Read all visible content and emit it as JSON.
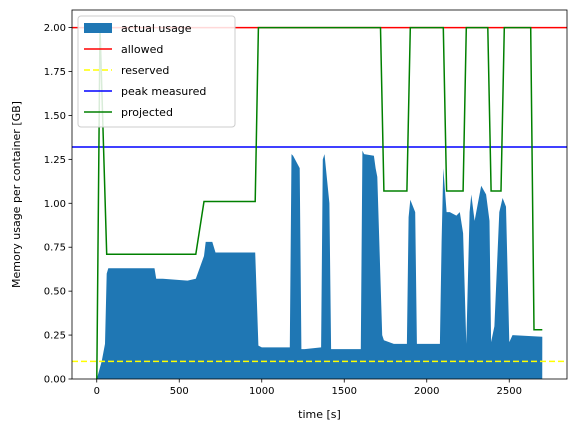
{
  "chart_data": {
    "type": "area",
    "xlabel": "time [s]",
    "ylabel": "Memory usage per container [GB]",
    "xlim": [
      -150,
      2850
    ],
    "ylim": [
      0,
      2.1
    ],
    "xticks": [
      0,
      500,
      1000,
      1500,
      2000,
      2500
    ],
    "yticks": [
      0.0,
      0.25,
      0.5,
      0.75,
      1.0,
      1.25,
      1.5,
      1.75,
      2.0
    ],
    "ytick_labels": [
      "0.00",
      "0.25",
      "0.50",
      "0.75",
      "1.00",
      "1.25",
      "1.50",
      "1.75",
      "2.00"
    ],
    "grid": false,
    "legend_position": "top-left",
    "series": [
      {
        "name": "actual usage",
        "kind": "area",
        "color": "#1f77b4",
        "x": [
          0,
          30,
          50,
          60,
          70,
          350,
          360,
          380,
          400,
          550,
          600,
          650,
          660,
          700,
          720,
          750,
          760,
          900,
          960,
          980,
          1000,
          1170,
          1180,
          1190,
          1230,
          1240,
          1260,
          1360,
          1370,
          1380,
          1410,
          1420,
          1440,
          1600,
          1610,
          1620,
          1680,
          1690,
          1700,
          1730,
          1740,
          1800,
          1880,
          1890,
          1900,
          1930,
          1940,
          2000,
          2080,
          2090,
          2100,
          2120,
          2140,
          2180,
          2200,
          2220,
          2240,
          2260,
          2270,
          2290,
          2310,
          2330,
          2360,
          2380,
          2390,
          2410,
          2440,
          2460,
          2480,
          2500,
          2520,
          2700
        ],
        "y": [
          0.0,
          0.1,
          0.2,
          0.6,
          0.63,
          0.63,
          0.57,
          0.57,
          0.57,
          0.56,
          0.57,
          0.7,
          0.78,
          0.78,
          0.72,
          0.72,
          0.72,
          0.72,
          0.72,
          0.19,
          0.18,
          0.18,
          1.28,
          1.27,
          1.2,
          0.17,
          0.17,
          0.18,
          1.25,
          1.28,
          1.0,
          0.17,
          0.17,
          0.17,
          1.3,
          1.28,
          1.27,
          1.2,
          1.15,
          0.25,
          0.22,
          0.2,
          0.2,
          0.92,
          1.02,
          0.95,
          0.2,
          0.2,
          0.2,
          0.78,
          1.2,
          0.95,
          0.95,
          0.93,
          0.95,
          0.83,
          0.2,
          0.95,
          1.05,
          0.9,
          1.0,
          1.1,
          1.05,
          0.9,
          0.21,
          0.3,
          0.95,
          1.03,
          0.98,
          0.21,
          0.25,
          0.24
        ]
      },
      {
        "name": "allowed",
        "kind": "hline",
        "color": "#ff0000",
        "value": 2.0
      },
      {
        "name": "reserved",
        "kind": "hline-dashed",
        "color": "#ffff00",
        "value": 0.1
      },
      {
        "name": "peak measured",
        "kind": "hline",
        "color": "#0000ff",
        "value": 1.32
      },
      {
        "name": "projected",
        "kind": "line",
        "color": "#008000",
        "x": [
          0,
          20,
          60,
          600,
          650,
          960,
          980,
          1720,
          1740,
          1880,
          1900,
          2100,
          2120,
          2220,
          2240,
          2370,
          2390,
          2450,
          2470,
          2630,
          2650,
          2700
        ],
        "y": [
          0.0,
          2.0,
          0.71,
          0.71,
          1.01,
          1.01,
          2.0,
          2.0,
          1.07,
          1.07,
          2.0,
          2.0,
          1.07,
          1.07,
          2.0,
          2.0,
          1.07,
          1.07,
          2.0,
          2.0,
          0.28,
          0.28
        ]
      }
    ]
  }
}
